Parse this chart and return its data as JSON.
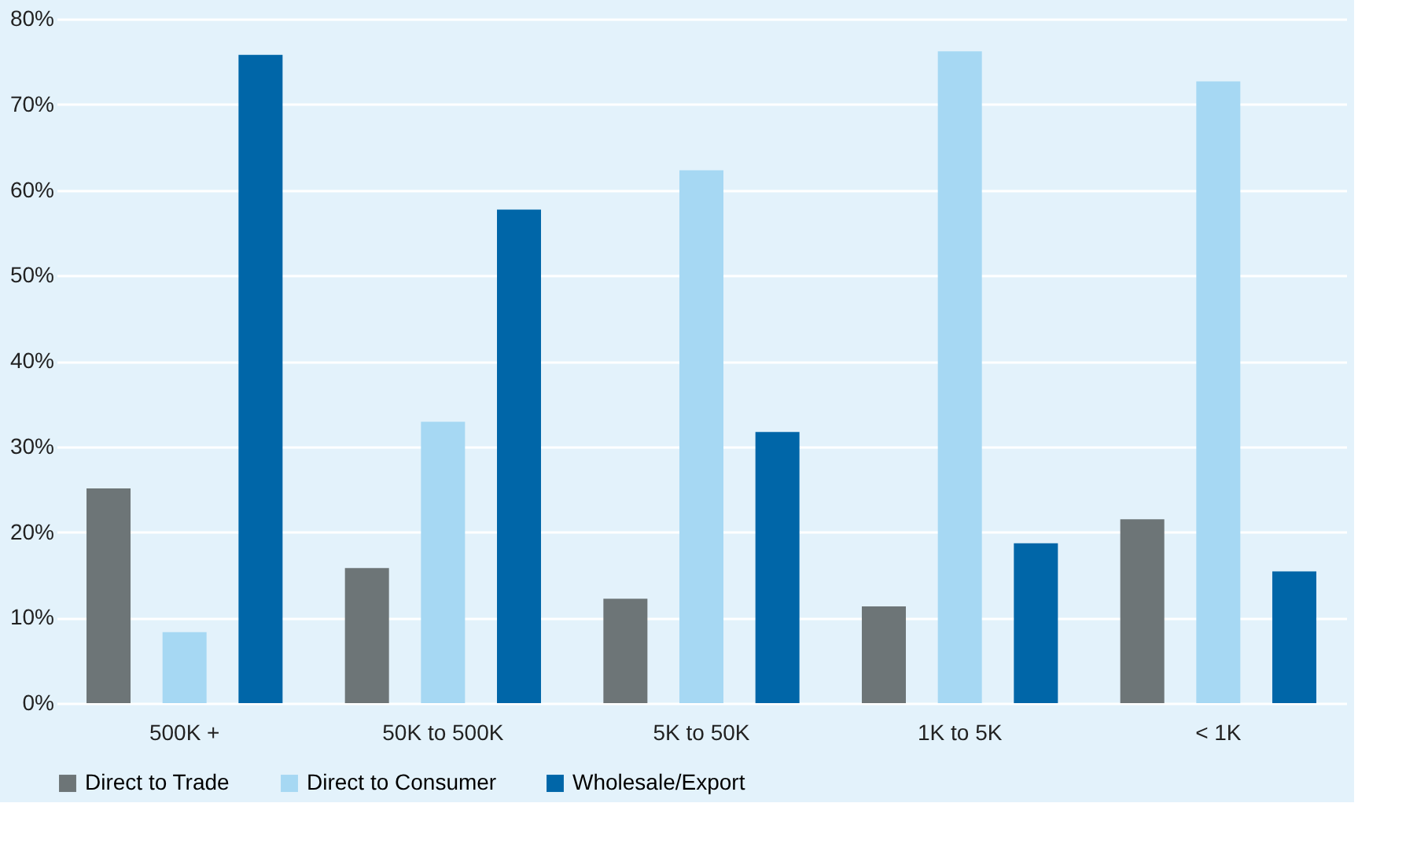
{
  "chart_data": {
    "type": "bar",
    "categories": [
      "500K +",
      "50K to 500K",
      "5K to 50K",
      "1K to 5K",
      "< 1K"
    ],
    "series": [
      {
        "name": "Direct to Trade",
        "color": "#6d7577",
        "values": [
          25.1,
          15.8,
          12.2,
          11.3,
          21.5
        ]
      },
      {
        "name": "Direct to Consumer",
        "color": "#a6d8f3",
        "values": [
          8.3,
          32.9,
          62.3,
          76.2,
          72.7
        ]
      },
      {
        "name": "Wholesale/Export",
        "color": "#0066a8",
        "values": [
          75.8,
          57.7,
          31.7,
          18.7,
          15.4
        ]
      }
    ],
    "ylim": [
      0,
      80
    ],
    "yticks": [
      {
        "value": 0,
        "label": "0%"
      },
      {
        "value": 10,
        "label": "10%"
      },
      {
        "value": 20,
        "label": "20%"
      },
      {
        "value": 30,
        "label": "30%"
      },
      {
        "value": 40,
        "label": "40%"
      },
      {
        "value": 50,
        "label": "50%"
      },
      {
        "value": 60,
        "label": "60%"
      },
      {
        "value": 70,
        "label": "70%"
      },
      {
        "value": 80,
        "label": "80%"
      }
    ],
    "grid": "y",
    "legend": "bottom"
  }
}
